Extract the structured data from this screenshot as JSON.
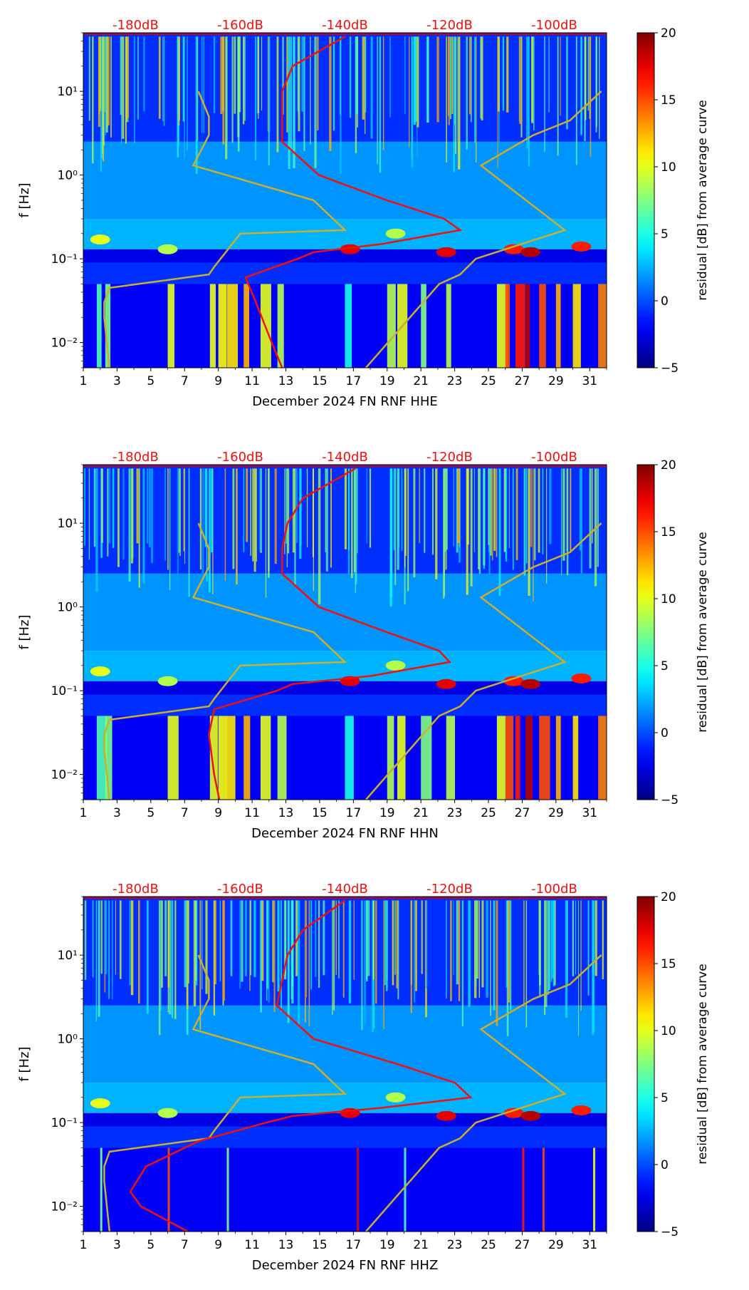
{
  "colorbar": {
    "label": "residual [dB] from average curve",
    "ticks": [
      "20",
      "15",
      "10",
      "5",
      "0",
      "−5"
    ],
    "range": [
      -5,
      20
    ],
    "colormap": "jet"
  },
  "shared": {
    "ylabel": "f [Hz]",
    "y_ticks": [
      "10¹",
      "10⁰",
      "10⁻¹",
      "10⁻²"
    ],
    "x_ticks": [
      "1",
      "3",
      "5",
      "7",
      "9",
      "11",
      "13",
      "15",
      "17",
      "19",
      "21",
      "23",
      "25",
      "27",
      "29",
      "31"
    ],
    "top_db_labels": [
      "-180dB",
      "-160dB",
      "-140dB",
      "-120dB",
      "-100dB"
    ],
    "line_colors": {
      "median": "#ee1111",
      "noise_model": "#c8b030",
      "top_labels": "#ee1111"
    }
  },
  "chart_data": [
    {
      "type": "heatmap",
      "title": "",
      "xlabel": "December 2024 FN RNF  HHE",
      "ylabel": "f [Hz]",
      "xlim": [
        1,
        32
      ],
      "ylim_hz": [
        0.005,
        50
      ],
      "yscale": "log",
      "top_axis": {
        "labels": [
          "-180dB",
          "-160dB",
          "-140dB",
          "-120dB",
          "-100dB"
        ],
        "range_db": [
          -190,
          -90
        ]
      },
      "median_curve_db_vs_hz": [
        [
          45,
          -140
        ],
        [
          20,
          -150
        ],
        [
          10,
          -152
        ],
        [
          5,
          -152
        ],
        [
          2.5,
          -152
        ],
        [
          1,
          -145
        ],
        [
          0.5,
          -132
        ],
        [
          0.3,
          -121
        ],
        [
          0.22,
          -118
        ],
        [
          0.15,
          -133
        ],
        [
          0.12,
          -146
        ],
        [
          0.1,
          -149
        ],
        [
          0.06,
          -159
        ],
        [
          0.03,
          -157
        ],
        [
          0.01,
          -154
        ],
        [
          0.005,
          -152
        ]
      ],
      "noise_models_db_vs_hz": [
        [
          [
            10,
            -168
          ],
          [
            5,
            -166
          ],
          [
            3,
            -166
          ],
          [
            1.3,
            -169
          ],
          [
            0.5,
            -146
          ],
          [
            0.22,
            -140
          ],
          [
            0.2,
            -160
          ],
          [
            0.08,
            -165
          ],
          [
            0.065,
            -166
          ],
          [
            0.045,
            -185
          ],
          [
            0.03,
            -186
          ],
          [
            0.02,
            -186
          ],
          [
            0.005,
            -185
          ]
        ],
        [
          [
            10,
            -91
          ],
          [
            4.5,
            -97
          ],
          [
            3,
            -104
          ],
          [
            1.3,
            -114
          ],
          [
            0.22,
            -98
          ],
          [
            0.1,
            -115
          ],
          [
            0.065,
            -118
          ],
          [
            0.05,
            -122
          ],
          [
            0.005,
            -136
          ]
        ]
      ]
    },
    {
      "type": "heatmap",
      "title": "",
      "xlabel": "December 2024 FN RNF  HHN",
      "ylabel": "f [Hz]",
      "xlim": [
        1,
        32
      ],
      "ylim_hz": [
        0.005,
        50
      ],
      "yscale": "log",
      "top_axis": {
        "labels": [
          "-180dB",
          "-160dB",
          "-140dB",
          "-120dB",
          "-100dB"
        ],
        "range_db": [
          -190,
          -90
        ]
      },
      "median_curve_db_vs_hz": [
        [
          45,
          -138
        ],
        [
          20,
          -148
        ],
        [
          10,
          -151
        ],
        [
          5,
          -152
        ],
        [
          2.5,
          -152
        ],
        [
          1,
          -145
        ],
        [
          0.5,
          -132
        ],
        [
          0.3,
          -122
        ],
        [
          0.22,
          -120
        ],
        [
          0.15,
          -135
        ],
        [
          0.12,
          -150
        ],
        [
          0.1,
          -153
        ],
        [
          0.06,
          -165
        ],
        [
          0.03,
          -166
        ],
        [
          0.01,
          -165
        ],
        [
          0.005,
          -164
        ]
      ],
      "noise_models_db_vs_hz": [
        [
          [
            10,
            -168
          ],
          [
            5,
            -166
          ],
          [
            3,
            -166
          ],
          [
            1.3,
            -169
          ],
          [
            0.5,
            -146
          ],
          [
            0.22,
            -140
          ],
          [
            0.2,
            -160
          ],
          [
            0.08,
            -165
          ],
          [
            0.065,
            -166
          ],
          [
            0.045,
            -185
          ],
          [
            0.03,
            -186
          ],
          [
            0.02,
            -186
          ],
          [
            0.005,
            -185
          ]
        ],
        [
          [
            10,
            -91
          ],
          [
            4.5,
            -97
          ],
          [
            3,
            -104
          ],
          [
            1.3,
            -114
          ],
          [
            0.22,
            -98
          ],
          [
            0.1,
            -115
          ],
          [
            0.065,
            -118
          ],
          [
            0.05,
            -122
          ],
          [
            0.005,
            -136
          ]
        ]
      ]
    },
    {
      "type": "heatmap",
      "title": "",
      "xlabel": "December 2024 FN RNF  HHZ",
      "ylabel": "f [Hz]",
      "xlim": [
        1,
        32
      ],
      "ylim_hz": [
        0.005,
        50
      ],
      "yscale": "log",
      "top_axis": {
        "labels": [
          "-180dB",
          "-160dB",
          "-140dB",
          "-120dB",
          "-100dB"
        ],
        "range_db": [
          -190,
          -90
        ]
      },
      "median_curve_db_vs_hz": [
        [
          45,
          -140
        ],
        [
          20,
          -148
        ],
        [
          10,
          -151
        ],
        [
          5,
          -152
        ],
        [
          2.5,
          -153
        ],
        [
          1,
          -146
        ],
        [
          0.5,
          -130
        ],
        [
          0.3,
          -119
        ],
        [
          0.2,
          -116
        ],
        [
          0.15,
          -133
        ],
        [
          0.12,
          -150
        ],
        [
          0.1,
          -155
        ],
        [
          0.06,
          -168
        ],
        [
          0.03,
          -178
        ],
        [
          0.015,
          -181
        ],
        [
          0.01,
          -179
        ],
        [
          0.005,
          -170
        ]
      ],
      "noise_models_db_vs_hz": [
        [
          [
            10,
            -168
          ],
          [
            5,
            -166
          ],
          [
            3,
            -166
          ],
          [
            1.3,
            -169
          ],
          [
            0.5,
            -146
          ],
          [
            0.22,
            -140
          ],
          [
            0.2,
            -160
          ],
          [
            0.08,
            -165
          ],
          [
            0.065,
            -166
          ],
          [
            0.045,
            -185
          ],
          [
            0.03,
            -186
          ],
          [
            0.02,
            -186
          ],
          [
            0.005,
            -185
          ]
        ],
        [
          [
            10,
            -91
          ],
          [
            4.5,
            -97
          ],
          [
            3,
            -104
          ],
          [
            1.3,
            -114
          ],
          [
            0.22,
            -98
          ],
          [
            0.1,
            -115
          ],
          [
            0.065,
            -118
          ],
          [
            0.05,
            -122
          ],
          [
            0.005,
            -136
          ]
        ]
      ]
    }
  ]
}
